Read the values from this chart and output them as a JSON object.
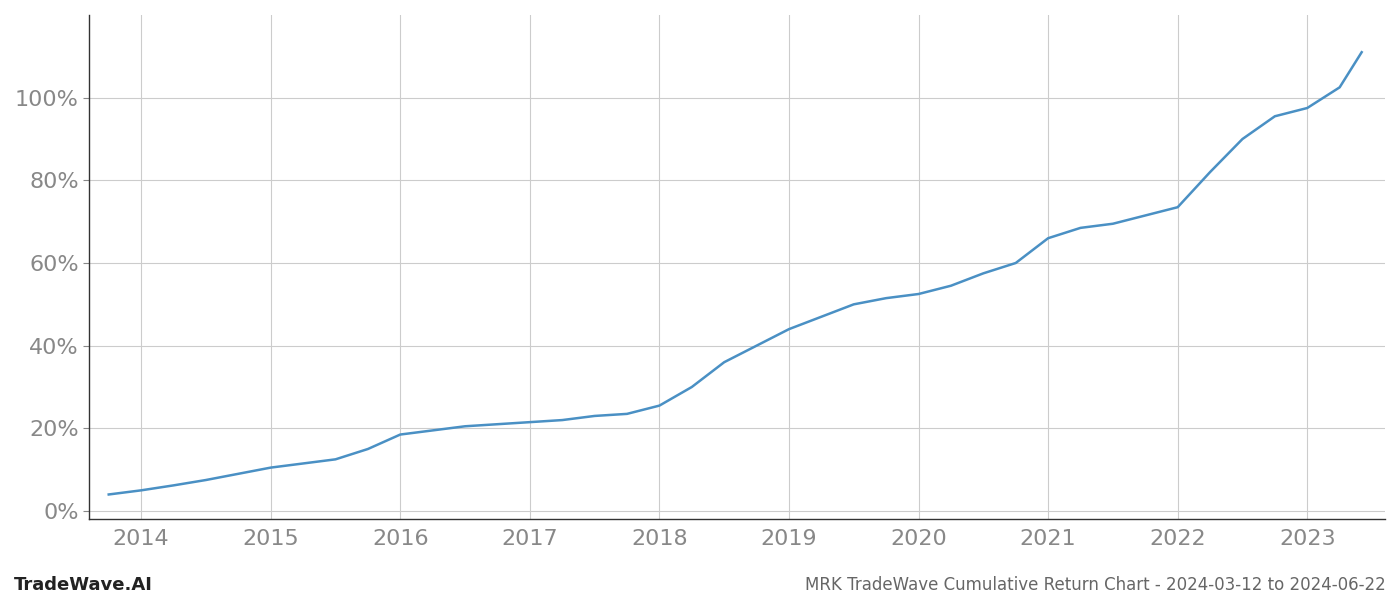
{
  "title": "MRK TradeWave Cumulative Return Chart - 2024-03-12 to 2024-06-22",
  "watermark": "TradeWave.AI",
  "line_color": "#4a90c4",
  "background_color": "#ffffff",
  "grid_color": "#cccccc",
  "x_values": [
    2013.75,
    2014.0,
    2014.25,
    2014.5,
    2014.75,
    2015.0,
    2015.25,
    2015.5,
    2015.75,
    2016.0,
    2016.25,
    2016.5,
    2016.75,
    2017.0,
    2017.25,
    2017.5,
    2017.75,
    2018.0,
    2018.25,
    2018.5,
    2018.75,
    2019.0,
    2019.25,
    2019.5,
    2019.75,
    2020.0,
    2020.25,
    2020.5,
    2020.75,
    2021.0,
    2021.25,
    2021.5,
    2021.75,
    2022.0,
    2022.25,
    2022.5,
    2022.75,
    2023.0,
    2023.25,
    2023.42
  ],
  "y_values": [
    0.04,
    0.05,
    0.062,
    0.075,
    0.09,
    0.105,
    0.115,
    0.125,
    0.15,
    0.185,
    0.195,
    0.205,
    0.21,
    0.215,
    0.22,
    0.23,
    0.235,
    0.255,
    0.3,
    0.36,
    0.4,
    0.44,
    0.47,
    0.5,
    0.515,
    0.525,
    0.545,
    0.575,
    0.6,
    0.66,
    0.685,
    0.695,
    0.715,
    0.735,
    0.82,
    0.9,
    0.955,
    0.975,
    1.025,
    1.11
  ],
  "xlim": [
    2013.6,
    2023.6
  ],
  "ylim": [
    -0.02,
    1.2
  ],
  "yticks": [
    0.0,
    0.2,
    0.4,
    0.6,
    0.8,
    1.0
  ],
  "ytick_labels": [
    "0%",
    "20%",
    "40%",
    "60%",
    "80%",
    "100%"
  ],
  "xticks": [
    2014,
    2015,
    2016,
    2017,
    2018,
    2019,
    2020,
    2021,
    2022,
    2023
  ],
  "line_width": 1.8,
  "figsize": [
    14.0,
    6.0
  ],
  "dpi": 100,
  "tick_fontsize": 16,
  "watermark_fontsize": 13,
  "title_fontsize": 12,
  "spine_color": "#333333",
  "axis_color": "#888888",
  "tick_color": "#888888",
  "title_color": "#666666",
  "watermark_color": "#222222"
}
